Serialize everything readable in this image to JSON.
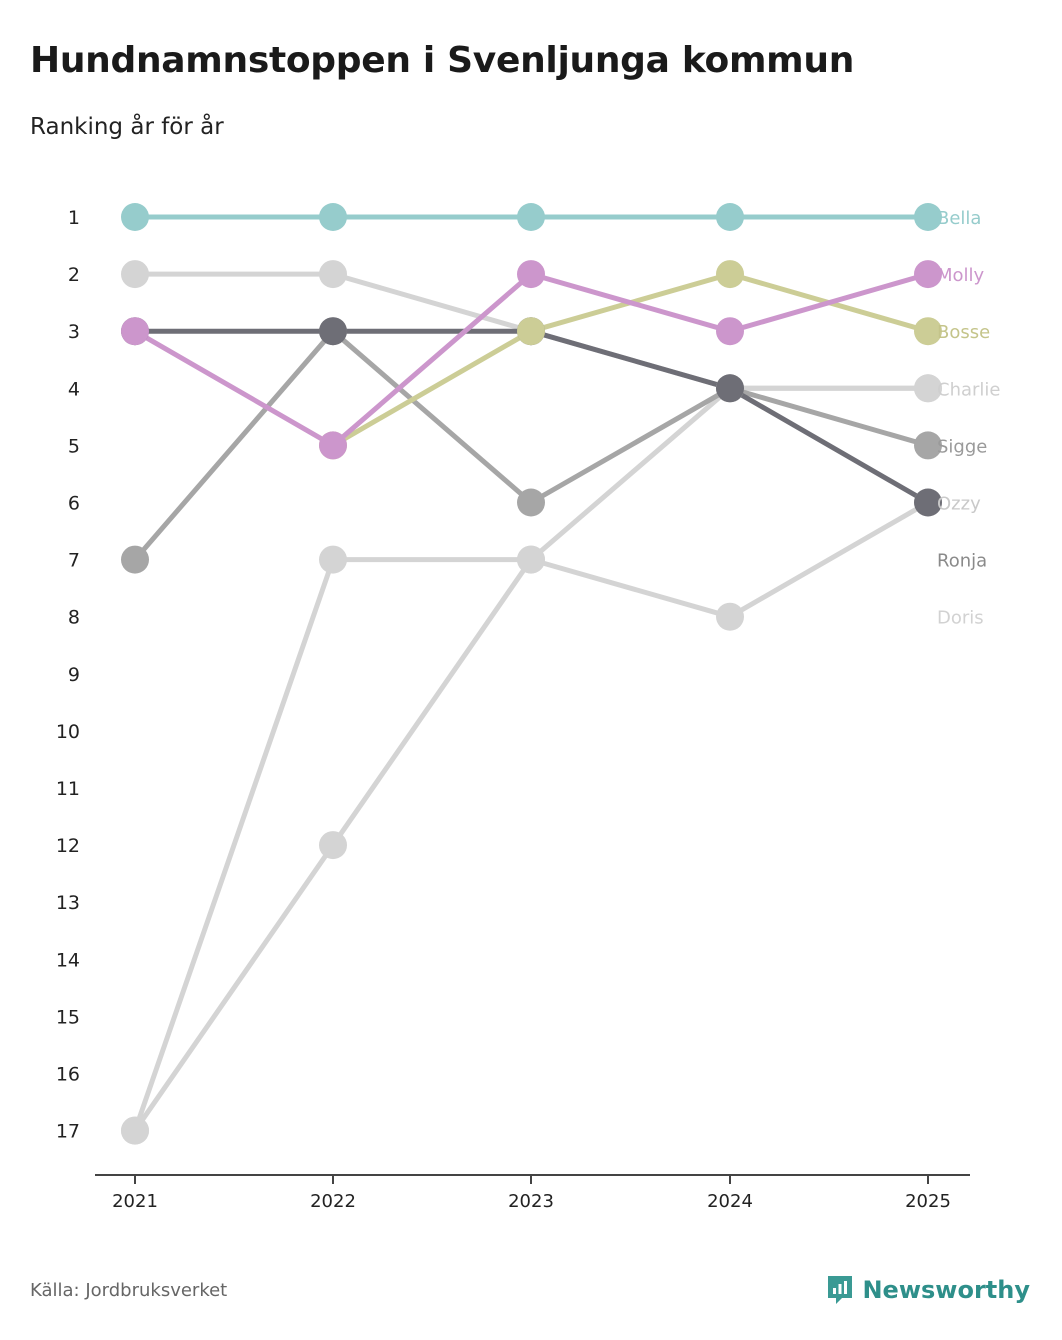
{
  "title": "Hundnamnstoppen i Svenljunga kommun",
  "subtitle": "Ranking år för år",
  "source": "Källa: Jordbruksverket",
  "brand": "Newsworthy",
  "colors": {
    "brand": "#3a9a94",
    "axis": "#444444"
  },
  "chart_data": {
    "type": "line",
    "title": "Hundnamnstoppen i Svenljunga kommun",
    "subtitle": "Ranking år för år",
    "xlabel": "",
    "ylabel": "",
    "x": [
      "2021",
      "2022",
      "2023",
      "2024",
      "2025"
    ],
    "y_ticks": [
      1,
      2,
      3,
      4,
      5,
      6,
      7,
      8,
      9,
      10,
      11,
      12,
      13,
      14,
      15,
      16,
      17
    ],
    "ylim": [
      1,
      17
    ],
    "y_inverted": true,
    "grid": false,
    "series": [
      {
        "name": "Doris",
        "color": "#d4d4d4",
        "values": [
          2,
          2,
          3,
          4,
          4
        ]
      },
      {
        "name": "Ronja",
        "color": "#d4d4d4",
        "values": [
          17,
          12,
          7,
          8,
          6
        ]
      },
      {
        "name": "Charlie",
        "color": "#d4d4d4",
        "values": [
          17,
          7,
          7,
          4,
          4
        ]
      },
      {
        "name": "Sigge",
        "color": "#a6a6a6",
        "values": [
          7,
          3,
          6,
          4,
          5
        ]
      },
      {
        "name": "Ozzy",
        "color": "#6e6e76",
        "values": [
          3,
          3,
          3,
          4,
          6
        ]
      },
      {
        "name": "Bosse",
        "color": "#cccd96",
        "values": [
          null,
          5,
          3,
          2,
          3
        ]
      },
      {
        "name": "Molly",
        "color": "#cc96cc",
        "values": [
          3,
          5,
          2,
          3,
          2
        ]
      },
      {
        "name": "Bella",
        "color": "#96cccc",
        "values": [
          1,
          1,
          1,
          1,
          1
        ]
      }
    ],
    "end_labels": [
      {
        "name": "Bella",
        "rank": 1,
        "color": "#96cccc"
      },
      {
        "name": "Molly",
        "rank": 2,
        "color": "#cc96cc"
      },
      {
        "name": "Bosse",
        "rank": 3,
        "color": "#c4c48a"
      },
      {
        "name": "Charlie",
        "rank": 4,
        "color": "#cfcfcf"
      },
      {
        "name": "Sigge",
        "rank": 5,
        "color": "#9a9a9a"
      },
      {
        "name": "Ozzy",
        "rank": 6,
        "color": "#c9c9c9"
      },
      {
        "name": "Ronja",
        "rank": 7,
        "color": "#8a8a8a"
      },
      {
        "name": "Doris",
        "rank": 8,
        "color": "#d2d2d2"
      }
    ]
  }
}
